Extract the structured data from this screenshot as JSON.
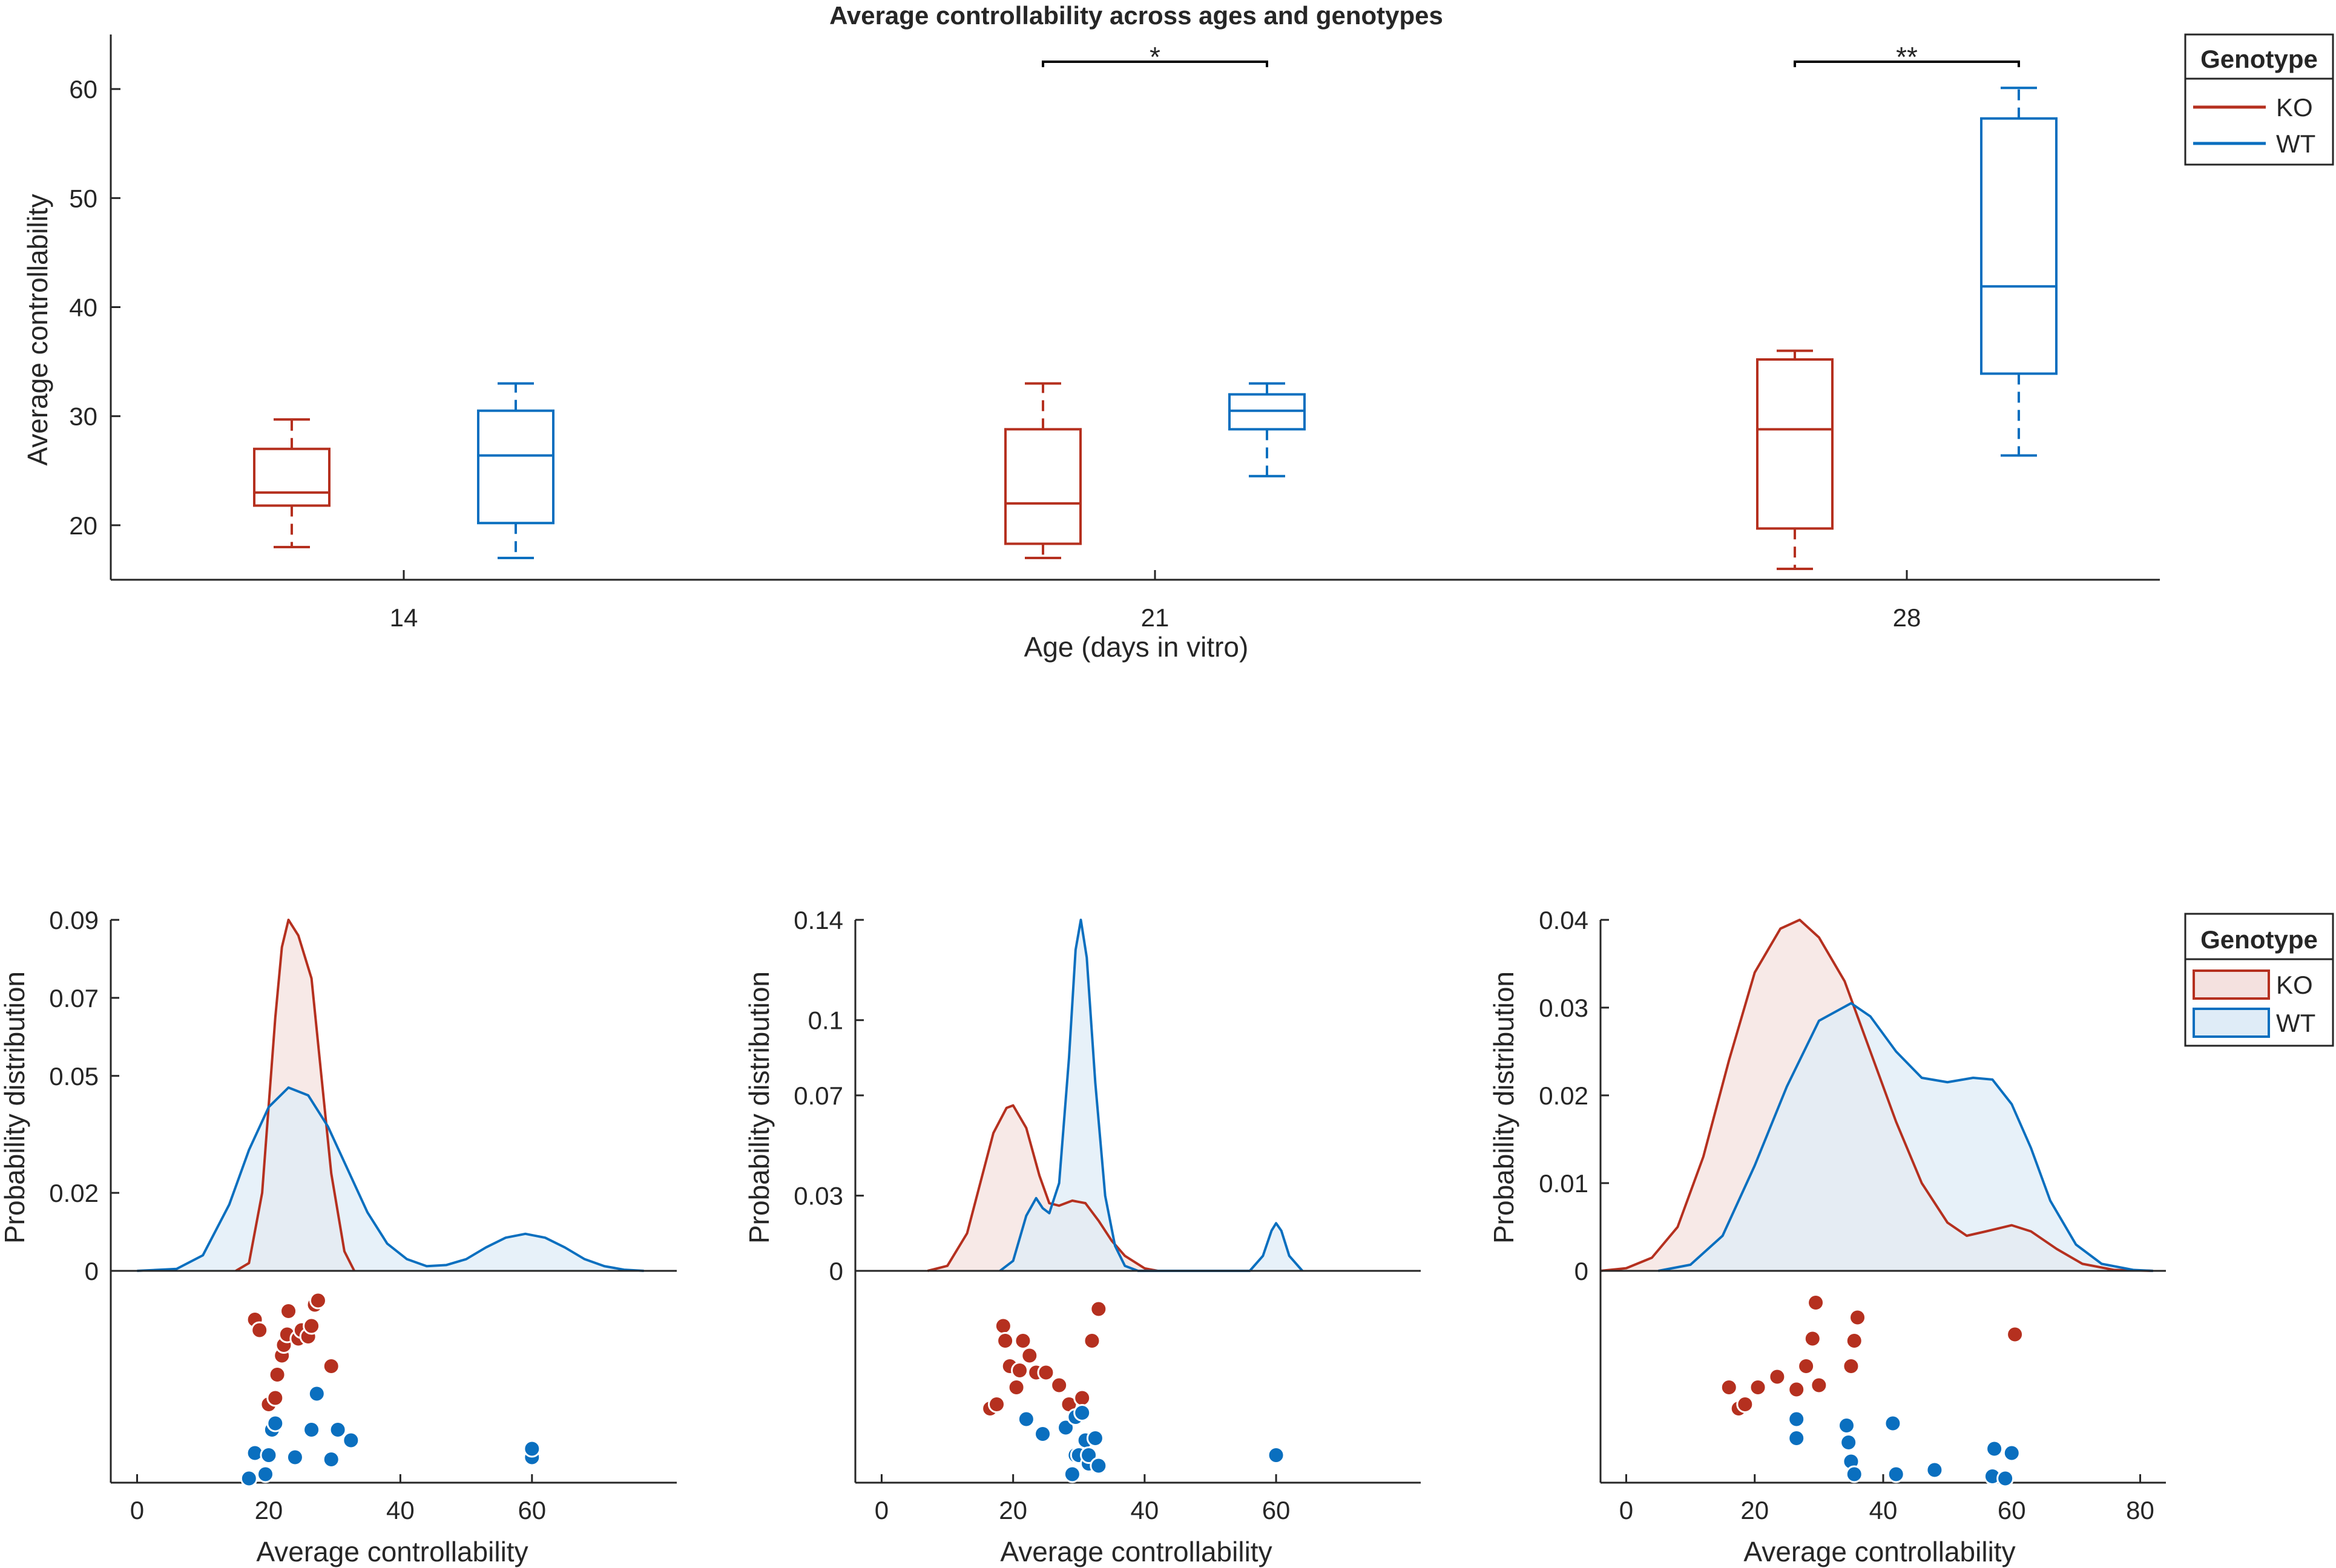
{
  "colors": {
    "KO": "#b5301f",
    "WT": "#0a6fbf",
    "KO_fill": "#f4e1df",
    "WT_fill": "#dfecf7",
    "overlap_fill": "#ddd8df"
  },
  "chart_data": [
    {
      "type": "box",
      "title": "Average controllability across ages and genotypes",
      "xlabel": "Age (days in vitro)",
      "ylabel": "Average controllability",
      "categories": [
        "14",
        "21",
        "28"
      ],
      "ylim": [
        15,
        65
      ],
      "yticks": [
        20,
        30,
        40,
        50,
        60
      ],
      "legend": {
        "title": "Genotype",
        "position": "top-right",
        "entries": [
          "KO",
          "WT"
        ]
      },
      "series": [
        {
          "name": "KO",
          "boxes": [
            {
              "min": 18,
              "q1": 21.8,
              "median": 23,
              "q3": 27,
              "max": 29.7
            },
            {
              "min": 17,
              "q1": 18.3,
              "median": 22,
              "q3": 28.8,
              "max": 33
            },
            {
              "min": 16,
              "q1": 19.7,
              "median": 28.8,
              "q3": 35.2,
              "max": 36
            }
          ]
        },
        {
          "name": "WT",
          "boxes": [
            {
              "min": 17,
              "q1": 20.2,
              "median": 26.4,
              "q3": 30.5,
              "max": 33
            },
            {
              "min": 24.5,
              "q1": 28.8,
              "median": 30.5,
              "q3": 32,
              "max": 33
            },
            {
              "min": 26.4,
              "q1": 33.9,
              "median": 41.9,
              "q3": 57.3,
              "max": 60.1
            }
          ]
        }
      ],
      "annotations": [
        {
          "category": "21",
          "label": "*",
          "y": 62.5
        },
        {
          "category": "28",
          "label": "**",
          "y": 62.5
        }
      ]
    },
    {
      "type": "density",
      "xlabel": "Average controllability",
      "ylabel": "Probability distribution",
      "xlim": [
        -4,
        82
      ],
      "xticks": [
        0,
        20,
        40,
        60
      ],
      "ylim": [
        0,
        0.09
      ],
      "yticks": [
        0,
        0.02,
        0.05,
        0.07,
        0.09
      ],
      "ytick_labels": [
        "0",
        "0.02",
        "0.05",
        "0.07",
        "0.09"
      ],
      "series": [
        {
          "name": "KO",
          "density": [
            [
              15,
              0
            ],
            [
              17,
              0.002
            ],
            [
              19,
              0.02
            ],
            [
              21,
              0.065
            ],
            [
              22,
              0.083
            ],
            [
              23,
              0.09
            ],
            [
              24.5,
              0.086
            ],
            [
              26.5,
              0.075
            ],
            [
              28,
              0.05
            ],
            [
              29.5,
              0.025
            ],
            [
              31.5,
              0.005
            ],
            [
              33,
              0
            ]
          ]
        },
        {
          "name": "WT",
          "density": [
            [
              0,
              0
            ],
            [
              6,
              0.0005
            ],
            [
              10,
              0.004
            ],
            [
              14,
              0.017
            ],
            [
              17,
              0.031
            ],
            [
              20,
              0.042
            ],
            [
              23,
              0.047
            ],
            [
              26,
              0.045
            ],
            [
              29,
              0.037
            ],
            [
              32,
              0.026
            ],
            [
              35,
              0.015
            ],
            [
              38,
              0.007
            ],
            [
              41,
              0.003
            ],
            [
              44,
              0.0012
            ],
            [
              47,
              0.0015
            ],
            [
              50,
              0.003
            ],
            [
              53,
              0.006
            ],
            [
              56,
              0.0085
            ],
            [
              59,
              0.0095
            ],
            [
              62,
              0.0085
            ],
            [
              65,
              0.006
            ],
            [
              68,
              0.003
            ],
            [
              71,
              0.0012
            ],
            [
              74,
              0.0003
            ],
            [
              77,
              0
            ]
          ]
        }
      ],
      "points": [
        {
          "name": "KO",
          "values": [
            [
              17.9,
              0.77
            ],
            [
              18.6,
              0.72
            ],
            [
              20,
              0.37
            ],
            [
              21,
              0.4
            ],
            [
              21.3,
              0.51
            ],
            [
              22,
              0.6
            ],
            [
              22.3,
              0.65
            ],
            [
              22.8,
              0.7
            ],
            [
              23,
              0.81
            ],
            [
              24.5,
              0.68
            ],
            [
              25,
              0.72
            ],
            [
              26,
              0.69
            ],
            [
              26.5,
              0.74
            ],
            [
              27,
              0.84
            ],
            [
              27.5,
              0.86
            ],
            [
              29.5,
              0.55
            ]
          ]
        },
        {
          "name": "WT",
          "values": [
            [
              17,
              0.02
            ],
            [
              17.9,
              0.14
            ],
            [
              19.5,
              0.04
            ],
            [
              20,
              0.13
            ],
            [
              20.5,
              0.25
            ],
            [
              21,
              0.28
            ],
            [
              24,
              0.12
            ],
            [
              26.5,
              0.25
            ],
            [
              27.3,
              0.42
            ],
            [
              29.5,
              0.11
            ],
            [
              30.5,
              0.25
            ],
            [
              32.5,
              0.2
            ],
            [
              60,
              0.12
            ],
            [
              60,
              0.16
            ]
          ]
        }
      ]
    },
    {
      "type": "density",
      "xlabel": "Average controllability",
      "ylabel": "Probability distribution",
      "xlim": [
        -4,
        82
      ],
      "xticks": [
        0,
        20,
        40,
        60
      ],
      "ylim": [
        0,
        0.14
      ],
      "yticks": [
        0,
        0.03,
        0.07,
        0.1,
        0.14
      ],
      "ytick_labels": [
        "0",
        "0.03",
        "0.07",
        "0.1",
        "0.14"
      ],
      "series": [
        {
          "name": "KO",
          "density": [
            [
              7,
              0
            ],
            [
              10,
              0.002
            ],
            [
              13,
              0.015
            ],
            [
              15,
              0.035
            ],
            [
              17,
              0.055
            ],
            [
              19,
              0.065
            ],
            [
              20,
              0.066
            ],
            [
              22,
              0.057
            ],
            [
              24,
              0.038
            ],
            [
              25.5,
              0.027
            ],
            [
              27,
              0.026
            ],
            [
              29,
              0.028
            ],
            [
              31,
              0.027
            ],
            [
              33,
              0.02
            ],
            [
              35,
              0.012
            ],
            [
              37,
              0.006
            ],
            [
              40,
              0.001
            ],
            [
              42,
              0
            ]
          ]
        },
        {
          "name": "WT",
          "density": [
            [
              18,
              0
            ],
            [
              20,
              0.004
            ],
            [
              22,
              0.022
            ],
            [
              23.5,
              0.029
            ],
            [
              24.5,
              0.025
            ],
            [
              25.5,
              0.023
            ],
            [
              27,
              0.035
            ],
            [
              28.5,
              0.085
            ],
            [
              29.5,
              0.128
            ],
            [
              30.3,
              0.14
            ],
            [
              31.2,
              0.125
            ],
            [
              32.5,
              0.075
            ],
            [
              34,
              0.03
            ],
            [
              35.5,
              0.01
            ],
            [
              37,
              0.002
            ],
            [
              39,
              0
            ],
            [
              56,
              0
            ],
            [
              58,
              0.006
            ],
            [
              59.3,
              0.016
            ],
            [
              60,
              0.019
            ],
            [
              60.8,
              0.016
            ],
            [
              62,
              0.006
            ],
            [
              64,
              0
            ]
          ]
        }
      ],
      "points": [
        {
          "name": "KO",
          "values": [
            [
              16.5,
              0.35
            ],
            [
              17.5,
              0.37
            ],
            [
              18.5,
              0.74
            ],
            [
              18.8,
              0.67
            ],
            [
              19.5,
              0.55
            ],
            [
              20.5,
              0.45
            ],
            [
              21,
              0.53
            ],
            [
              21.5,
              0.67
            ],
            [
              22.5,
              0.6
            ],
            [
              23.5,
              0.52
            ],
            [
              25,
              0.52
            ],
            [
              27,
              0.46
            ],
            [
              28.5,
              0.37
            ],
            [
              30.5,
              0.4
            ],
            [
              32,
              0.67
            ],
            [
              33,
              0.82
            ]
          ]
        },
        {
          "name": "WT",
          "values": [
            [
              22,
              0.3
            ],
            [
              24.5,
              0.23
            ],
            [
              28,
              0.26
            ],
            [
              29,
              0.04
            ],
            [
              29.5,
              0.13
            ],
            [
              29.5,
              0.31
            ],
            [
              30,
              0.13
            ],
            [
              30.5,
              0.33
            ],
            [
              31,
              0.2
            ],
            [
              31.5,
              0.09
            ],
            [
              31.5,
              0.13
            ],
            [
              32.5,
              0.21
            ],
            [
              33,
              0.08
            ],
            [
              60,
              0.13
            ]
          ]
        }
      ]
    },
    {
      "type": "density",
      "xlabel": "Average controllability",
      "ylabel": "Probability distribution",
      "xlim": [
        -4,
        84
      ],
      "xticks": [
        0,
        20,
        40,
        60,
        80
      ],
      "ylim": [
        0,
        0.04
      ],
      "yticks": [
        0,
        0.01,
        0.02,
        0.03,
        0.04
      ],
      "ytick_labels": [
        "0",
        "0.01",
        "0.02",
        "0.03",
        "0.04"
      ],
      "legend": {
        "title": "Genotype",
        "position": "top-right",
        "entries": [
          "KO",
          "WT"
        ]
      },
      "series": [
        {
          "name": "KO",
          "density": [
            [
              -4,
              0
            ],
            [
              0,
              0.0003
            ],
            [
              4,
              0.0015
            ],
            [
              8,
              0.005
            ],
            [
              12,
              0.013
            ],
            [
              16,
              0.024
            ],
            [
              20,
              0.034
            ],
            [
              24,
              0.039
            ],
            [
              27,
              0.04
            ],
            [
              30,
              0.038
            ],
            [
              34,
              0.033
            ],
            [
              38,
              0.025
            ],
            [
              42,
              0.017
            ],
            [
              46,
              0.01
            ],
            [
              50,
              0.0055
            ],
            [
              53,
              0.004
            ],
            [
              56,
              0.0045
            ],
            [
              60,
              0.0052
            ],
            [
              63,
              0.0045
            ],
            [
              67,
              0.0025
            ],
            [
              71,
              0.0008
            ],
            [
              76,
              0.0001
            ],
            [
              82,
              0
            ]
          ]
        },
        {
          "name": "WT",
          "density": [
            [
              5,
              0
            ],
            [
              10,
              0.0007
            ],
            [
              15,
              0.004
            ],
            [
              20,
              0.012
            ],
            [
              25,
              0.021
            ],
            [
              30,
              0.0285
            ],
            [
              35,
              0.0305
            ],
            [
              38,
              0.029
            ],
            [
              42,
              0.025
            ],
            [
              46,
              0.022
            ],
            [
              50,
              0.0215
            ],
            [
              54,
              0.022
            ],
            [
              57,
              0.0218
            ],
            [
              60,
              0.019
            ],
            [
              63,
              0.014
            ],
            [
              66,
              0.008
            ],
            [
              70,
              0.003
            ],
            [
              74,
              0.0008
            ],
            [
              79,
              0.0001
            ],
            [
              82,
              0
            ]
          ]
        }
      ],
      "points": [
        {
          "name": "KO",
          "values": [
            [
              16,
              0.45
            ],
            [
              17.5,
              0.35
            ],
            [
              18.5,
              0.37
            ],
            [
              20.5,
              0.45
            ],
            [
              23.5,
              0.5
            ],
            [
              26.5,
              0.44
            ],
            [
              28,
              0.55
            ],
            [
              29,
              0.68
            ],
            [
              29.5,
              0.85
            ],
            [
              30,
              0.46
            ],
            [
              35,
              0.55
            ],
            [
              35.5,
              0.67
            ],
            [
              36,
              0.78
            ],
            [
              60.5,
              0.7
            ]
          ]
        },
        {
          "name": "WT",
          "values": [
            [
              26.5,
              0.3
            ],
            [
              26.5,
              0.21
            ],
            [
              34.3,
              0.27
            ],
            [
              34.6,
              0.19
            ],
            [
              35,
              0.1
            ],
            [
              35.5,
              0.04
            ],
            [
              41.5,
              0.28
            ],
            [
              42,
              0.04
            ],
            [
              48,
              0.06
            ],
            [
              57,
              0.03
            ],
            [
              57.3,
              0.16
            ],
            [
              59,
              0.02
            ],
            [
              60,
              0.14
            ]
          ]
        }
      ]
    }
  ]
}
